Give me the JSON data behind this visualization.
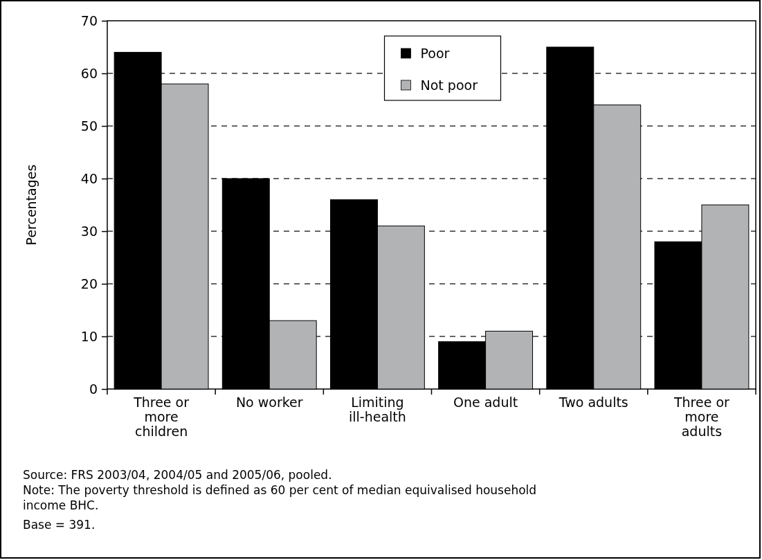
{
  "chart_data": {
    "type": "bar",
    "ylabel": "Percentages",
    "categories": [
      "Three or more children",
      "No worker",
      "Limiting ill-health",
      "One adult",
      "Two adults",
      "Three or more adults"
    ],
    "series": [
      {
        "name": "Poor",
        "color": "#000000",
        "values": [
          64,
          40,
          36,
          9,
          65,
          28
        ]
      },
      {
        "name": "Not poor",
        "color": "#b2b3b5",
        "values": [
          58,
          13,
          31,
          11,
          54,
          35
        ]
      }
    ],
    "ylim": [
      0,
      70
    ],
    "yticks": [
      0,
      10,
      20,
      30,
      40,
      50,
      60,
      70
    ],
    "grid": "y",
    "legend": "top",
    "annotations": [
      "Source: FRS 2003/04, 2004/05 and 2005/06, pooled.",
      "Note: The poverty threshold is defined as 60 per cent of median equivalised household income BHC.",
      "Base = 391."
    ]
  }
}
